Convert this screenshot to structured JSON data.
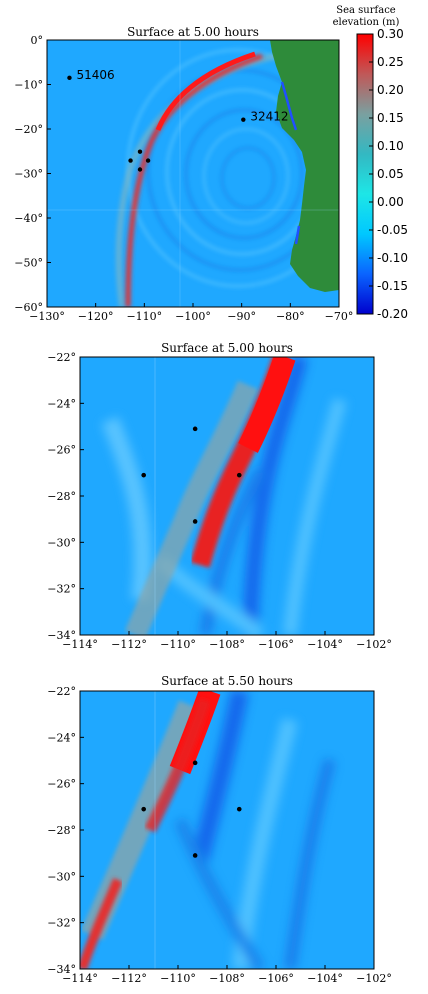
{
  "colorbar": {
    "title_line1": "Sea surface",
    "title_line2": "elevation (m)",
    "ticks": [
      "0.30",
      "0.25",
      "0.20",
      "0.15",
      "0.10",
      "0.05",
      "0.00",
      "-0.05",
      "-0.10",
      "-0.15",
      "-0.20"
    ],
    "range": [
      -0.2,
      0.3
    ],
    "colors": [
      "#0000cd",
      "#0a64ff",
      "#00c8ff",
      "#1ee6e6",
      "#33b8c2",
      "#7aa0a0",
      "#c05858",
      "#ff0000"
    ]
  },
  "colors": {
    "land": "#2e8b3a",
    "ocean": "#1e9bff",
    "wave_front": "#e03030",
    "frame": "#000000"
  },
  "chart_data": [
    {
      "type": "heatmap",
      "title": "Surface at 5.00 hours",
      "xlim": [
        -130,
        -65
      ],
      "ylim": [
        -60,
        0
      ],
      "xticks": [
        "−130°",
        "−120°",
        "−110°",
        "−100°",
        "−90°",
        "−80°",
        "−70°"
      ],
      "yticks": [
        "0°",
        "−10°",
        "−20°",
        "−30°",
        "−40°",
        "−50°",
        "−60°"
      ],
      "buoys": [
        {
          "name": "51406",
          "lon": -125.0,
          "lat": -8.5
        },
        {
          "name": "32412",
          "lon": -86.3,
          "lat": -17.9
        },
        {
          "name": "",
          "lon": -111.4,
          "lat": -27.1
        },
        {
          "name": "",
          "lon": -109.3,
          "lat": -25.1
        },
        {
          "name": "",
          "lon": -107.5,
          "lat": -27.1
        },
        {
          "name": "",
          "lon": -109.3,
          "lat": -29.1
        }
      ]
    },
    {
      "type": "heatmap",
      "title": "Surface at 5.00 hours",
      "xlim": [
        -114,
        -102
      ],
      "ylim": [
        -34,
        -22
      ],
      "xticks": [
        "−114°",
        "−112°",
        "−110°",
        "−108°",
        "−106°",
        "−104°",
        "−102°"
      ],
      "yticks": [
        "−22°",
        "−24°",
        "−26°",
        "−28°",
        "−30°",
        "−32°",
        "−34°"
      ],
      "buoys": [
        {
          "name": "",
          "lon": -111.4,
          "lat": -27.1
        },
        {
          "name": "",
          "lon": -109.3,
          "lat": -25.1
        },
        {
          "name": "",
          "lon": -107.5,
          "lat": -27.1
        },
        {
          "name": "",
          "lon": -109.3,
          "lat": -29.1
        }
      ]
    },
    {
      "type": "heatmap",
      "title": "Surface at 5.50 hours",
      "xlim": [
        -114,
        -102
      ],
      "ylim": [
        -34,
        -22
      ],
      "xticks": [
        "−114°",
        "−112°",
        "−110°",
        "−108°",
        "−106°",
        "−104°",
        "−102°"
      ],
      "yticks": [
        "−22°",
        "−24°",
        "−26°",
        "−28°",
        "−30°",
        "−32°",
        "−34°"
      ],
      "buoys": [
        {
          "name": "",
          "lon": -111.4,
          "lat": -27.1
        },
        {
          "name": "",
          "lon": -109.3,
          "lat": -25.1
        },
        {
          "name": "",
          "lon": -107.5,
          "lat": -27.1
        },
        {
          "name": "",
          "lon": -109.3,
          "lat": -29.1
        }
      ]
    }
  ]
}
